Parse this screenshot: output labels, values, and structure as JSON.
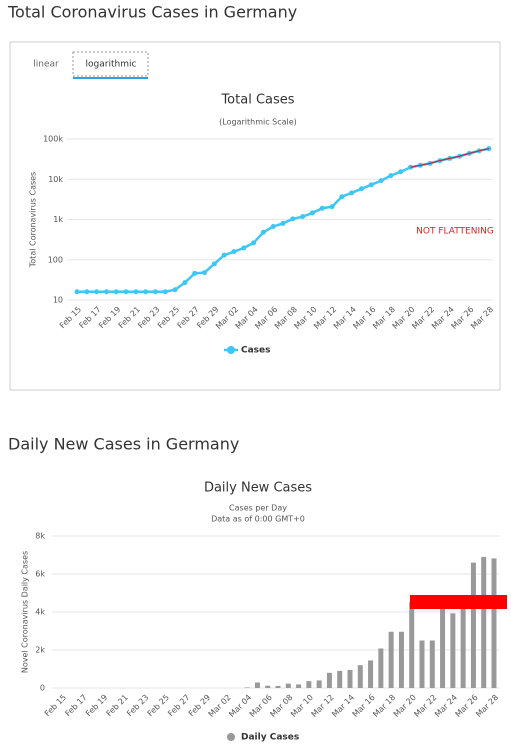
{
  "page": {
    "headings": [
      "Total Coronavirus Cases in Germany",
      "Daily New Cases in Germany"
    ],
    "tabs": [
      "linear",
      "logarithmic"
    ]
  },
  "chart_data": [
    {
      "type": "line",
      "title": "Total Cases",
      "subtitle": [
        "(Logarithmic Scale)"
      ],
      "y_label": "Total Coronavirus Cases",
      "annotation": "NOT FLATTENING",
      "yscale": "log",
      "grid": true,
      "legend": "bottom",
      "categories": [
        "Feb 15",
        null,
        "Feb 17",
        null,
        "Feb 19",
        null,
        "Feb 21",
        null,
        "Feb 23",
        null,
        "Feb 25",
        null,
        "Feb 27",
        null,
        "Feb 29",
        null,
        "Mar 02",
        null,
        "Mar 04",
        null,
        "Mar 06",
        null,
        "Mar 08",
        null,
        "Mar 10",
        null,
        "Mar 12",
        null,
        "Mar 14",
        null,
        "Mar 16",
        null,
        "Mar 18",
        null,
        "Mar 20",
        null,
        "Mar 22",
        null,
        "Mar 24",
        null,
        "Mar 26",
        null,
        "Mar 28"
      ],
      "series": [
        {
          "name": "Cases",
          "color": "#3ec6f5",
          "values": [
            16,
            16,
            16,
            16,
            16,
            16,
            16,
            16,
            16,
            16,
            18,
            27,
            46,
            48,
            79,
            130,
            159,
            196,
            262,
            482,
            670,
            799,
            1040,
            1176,
            1457,
            1908,
            2078,
            3675,
            4585,
            5795,
            7272,
            9257,
            12327,
            15320,
            19848,
            22213,
            24873,
            29056,
            32986,
            37323,
            43938,
            50871,
            57695
          ]
        }
      ],
      "ylim": [
        10,
        100000
      ],
      "yticks": [
        10,
        100,
        {
          "value": 1000,
          "label": "1k"
        },
        {
          "value": 10000,
          "label": "10k"
        },
        {
          "value": 100000,
          "label": "100k"
        }
      ]
    },
    {
      "type": "bar",
      "title": "Daily New Cases",
      "subtitle": [
        "Cases per Day",
        "Data as of 0:00 GMT+0"
      ],
      "y_label": "Novel Coronavirus Daily Cases",
      "grid": true,
      "legend": "bottom",
      "categories": [
        "Feb 15",
        null,
        "Feb 17",
        null,
        "Feb 19",
        null,
        "Feb 21",
        null,
        "Feb 23",
        null,
        "Feb 25",
        null,
        "Feb 27",
        null,
        "Feb 29",
        null,
        "Mar 02",
        null,
        "Mar 04",
        null,
        "Mar 06",
        null,
        "Mar 08",
        null,
        "Mar 10",
        null,
        "Mar 12",
        null,
        "Mar 14",
        null,
        "Mar 16",
        null,
        "Mar 18",
        null,
        "Mar 20",
        null,
        "Mar 22",
        null,
        "Mar 24",
        null,
        "Mar 26",
        null,
        "Mar 28"
      ],
      "series": [
        {
          "name": "Daily Cases",
          "color": "#999999",
          "values": [
            0,
            0,
            0,
            0,
            0,
            0,
            0,
            0,
            0,
            0,
            0,
            0,
            0,
            0,
            0,
            0,
            0,
            0,
            30,
            290,
            120,
            110,
            230,
            190,
            360,
            400,
            800,
            900,
            950,
            1200,
            1450,
            2080,
            2960,
            2960,
            4530,
            2500,
            2500,
            4180,
            3930,
            4340,
            6600,
            6900,
            6820
          ]
        }
      ],
      "ylim": [
        0,
        8000
      ],
      "yticks": [
        0,
        {
          "value": 2000,
          "label": "2k"
        },
        {
          "value": 4000,
          "label": "4k"
        },
        {
          "value": 6000,
          "label": "6k"
        },
        {
          "value": 8000,
          "label": "8k"
        }
      ]
    }
  ]
}
